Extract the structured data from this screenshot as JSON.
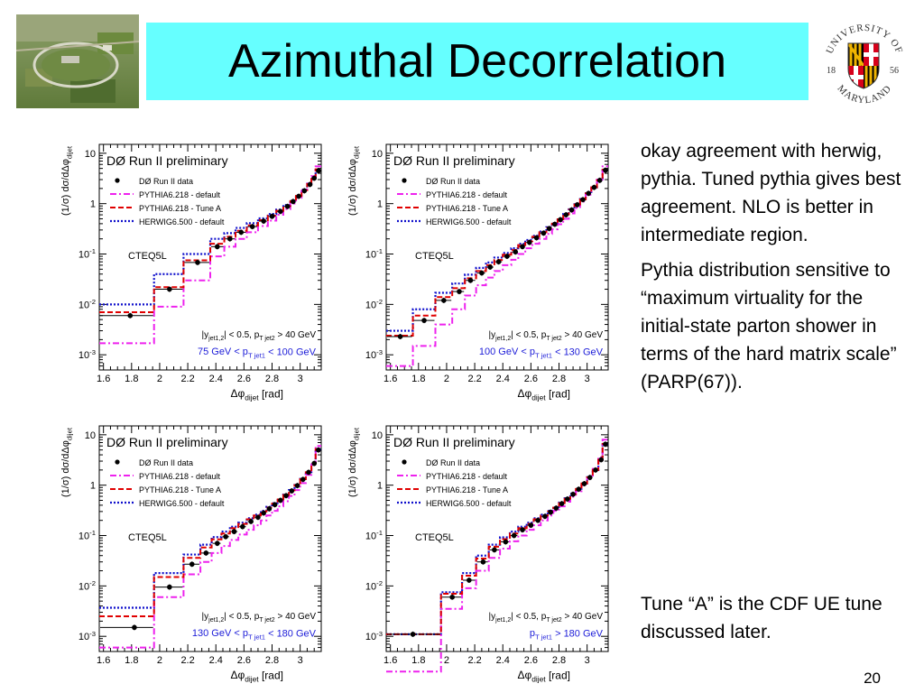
{
  "slide": {
    "title": "Azimuthal Decorrelation",
    "page_number": "20",
    "notes": [
      "okay agreement with herwig, pythia. Tuned pythia gives best agreement.  NLO is better in intermediate region.",
      "Pythia distribution sensitive to “maximum virtuality for the initial-state parton shower in terms of the hard matrix scale”  (PARP(67))."
    ],
    "footnote": "Tune “A” is the CDF UE tune discussed later.",
    "logo": {
      "name": "University of Maryland seal",
      "text_top": "UNIVERSITY OF",
      "text_bottom": "MARYLAND",
      "year_left": "18",
      "year_right": "56"
    },
    "photo": {
      "icon": "accelerator-aerial-photo"
    }
  },
  "colors": {
    "title_bg": "#66ffff",
    "data": "#000000",
    "pythia_default": "#ee22ee",
    "pythia_tuneA": "#e00000",
    "herwig": "#1010cc",
    "cut_text": "#1c1cd8"
  },
  "chart_data": [
    {
      "type": "line",
      "title": "DØ Run II preliminary",
      "xlabel": "Δφdijet [rad]",
      "ylabel": "(1/σ) dσ/dΔφdijet",
      "xlim": [
        1.57,
        3.15
      ],
      "ylim": [
        0.0005,
        15
      ],
      "ylog": true,
      "x_ticks": [
        "1.6",
        "1.8",
        "2",
        "2.2",
        "2.4",
        "2.6",
        "2.8",
        "3"
      ],
      "y_ticks": [
        "10",
        "1",
        "10-1",
        "10-2",
        "10-3"
      ],
      "pdf_label": "CTEQ5L",
      "cut_label": "|yjet1,2| < 0.5, pT jet2 > 40 GeV",
      "pt_label": "75 GeV < pT jet1 < 100 GeV",
      "legend": [
        "DØ  Run II data",
        "PYTHIA6.218 - default",
        "PYTHIA6.218 - Tune A",
        "HERWIG6.500 - default"
      ],
      "legend_position": "top-left",
      "bin_edges": [
        1.57,
        1.96,
        2.17,
        2.36,
        2.46,
        2.54,
        2.62,
        2.7,
        2.77,
        2.83,
        2.88,
        2.93,
        2.97,
        3.01,
        3.05,
        3.08,
        3.11,
        3.15
      ],
      "series": [
        {
          "name": "DØ  Run II data",
          "x": [
            1.79,
            2.07,
            2.27,
            2.41,
            2.5,
            2.58,
            2.66,
            2.74,
            2.8,
            2.86,
            2.91,
            2.95,
            2.99,
            3.03,
            3.07,
            3.1,
            3.13
          ],
          "values": [
            0.006,
            0.02,
            0.068,
            0.14,
            0.2,
            0.27,
            0.35,
            0.45,
            0.56,
            0.7,
            0.88,
            1.1,
            1.4,
            1.8,
            2.4,
            3.2,
            4.5
          ]
        },
        {
          "name": "PYTHIA6.218 - default",
          "values": [
            0.0017,
            0.009,
            0.03,
            0.09,
            0.14,
            0.2,
            0.27,
            0.36,
            0.46,
            0.6,
            0.78,
            1.0,
            1.3,
            1.8,
            2.5,
            3.5,
            5.5
          ]
        },
        {
          "name": "PYTHIA6.218 - Tune A",
          "values": [
            0.007,
            0.022,
            0.075,
            0.16,
            0.22,
            0.29,
            0.37,
            0.47,
            0.58,
            0.72,
            0.9,
            1.12,
            1.42,
            1.85,
            2.45,
            3.3,
            4.8
          ]
        },
        {
          "name": "HERWIG6.500 - default",
          "values": [
            0.01,
            0.04,
            0.1,
            0.2,
            0.26,
            0.33,
            0.41,
            0.51,
            0.62,
            0.76,
            0.94,
            1.16,
            1.46,
            1.9,
            2.5,
            3.3,
            4.7
          ]
        }
      ]
    },
    {
      "type": "line",
      "title": "DØ Run II preliminary",
      "xlabel": "Δφdijet [rad]",
      "ylabel": "(1/σ) dσ/dΔφdijet",
      "xlim": [
        1.57,
        3.15
      ],
      "ylim": [
        0.0005,
        15
      ],
      "ylog": true,
      "x_ticks": [
        "1.6",
        "1.8",
        "2",
        "2.2",
        "2.4",
        "2.6",
        "2.8",
        "3"
      ],
      "y_ticks": [
        "10",
        "1",
        "10-1",
        "10-2",
        "10-3"
      ],
      "pdf_label": "CTEQ5L",
      "cut_label": "|yjet1,2| < 0.5, pT jet2 > 40 GeV",
      "pt_label": "100 GeV < pT jet1 < 130 GeV",
      "legend": [
        "DØ  Run II data",
        "PYTHIA6.218 - default",
        "PYTHIA6.218 - Tune A",
        "HERWIG6.500 - default"
      ],
      "legend_position": "top-left",
      "bin_edges": [
        1.57,
        1.76,
        1.92,
        2.04,
        2.13,
        2.21,
        2.28,
        2.34,
        2.4,
        2.46,
        2.51,
        2.56,
        2.61,
        2.66,
        2.71,
        2.75,
        2.79,
        2.83,
        2.87,
        2.91,
        2.95,
        2.99,
        3.03,
        3.07,
        3.11,
        3.15
      ],
      "series": [
        {
          "name": "DØ  Run II data",
          "x": [
            1.67,
            1.84,
            1.98,
            2.09,
            2.17,
            2.25,
            2.31,
            2.37,
            2.43,
            2.49,
            2.54,
            2.59,
            2.64,
            2.69,
            2.73,
            2.77,
            2.81,
            2.85,
            2.89,
            2.93,
            2.97,
            3.01,
            3.05,
            3.09,
            3.13
          ],
          "values": [
            0.0023,
            0.0048,
            0.012,
            0.018,
            0.03,
            0.042,
            0.055,
            0.07,
            0.09,
            0.11,
            0.14,
            0.17,
            0.21,
            0.26,
            0.32,
            0.39,
            0.48,
            0.6,
            0.75,
            0.95,
            1.2,
            1.6,
            2.1,
            2.9,
            4.6
          ]
        },
        {
          "name": "PYTHIA6.218 - default",
          "values": [
            0.0006,
            0.0015,
            0.004,
            0.008,
            0.015,
            0.024,
            0.034,
            0.046,
            0.06,
            0.077,
            0.1,
            0.13,
            0.16,
            0.2,
            0.25,
            0.31,
            0.39,
            0.5,
            0.64,
            0.82,
            1.1,
            1.5,
            2.1,
            3.0,
            5.5
          ]
        },
        {
          "name": "PYTHIA6.218 - Tune A",
          "values": [
            0.0024,
            0.006,
            0.014,
            0.021,
            0.033,
            0.046,
            0.06,
            0.076,
            0.097,
            0.12,
            0.15,
            0.18,
            0.22,
            0.27,
            0.33,
            0.4,
            0.49,
            0.61,
            0.76,
            0.96,
            1.22,
            1.6,
            2.1,
            2.9,
            4.7
          ]
        },
        {
          "name": "HERWIG6.500 - default",
          "values": [
            0.003,
            0.008,
            0.017,
            0.026,
            0.039,
            0.053,
            0.068,
            0.085,
            0.105,
            0.13,
            0.16,
            0.19,
            0.23,
            0.28,
            0.34,
            0.41,
            0.5,
            0.62,
            0.77,
            0.97,
            1.23,
            1.6,
            2.1,
            2.9,
            4.6
          ]
        }
      ]
    },
    {
      "type": "line",
      "title": "DØ Run II preliminary",
      "xlabel": "Δφdijet [rad]",
      "ylabel": "(1/σ) dσ/dΔφdijet",
      "xlim": [
        1.57,
        3.15
      ],
      "ylim": [
        0.0005,
        15
      ],
      "ylog": true,
      "x_ticks": [
        "1.6",
        "1.8",
        "2",
        "2.2",
        "2.4",
        "2.6",
        "2.8",
        "3"
      ],
      "y_ticks": [
        "10",
        "1",
        "10-1",
        "10-2",
        "10-3"
      ],
      "pdf_label": "CTEQ5L",
      "cut_label": "|yjet1,2| < 0.5, pT jet2 > 40 GeV",
      "pt_label": "130 GeV < pT jet1 < 180 GeV",
      "legend": [
        "DØ  Run II data",
        "PYTHIA6.218 - default",
        "PYTHIA6.218 - Tune A",
        "HERWIG6.500 - default"
      ],
      "legend_position": "top-left",
      "bin_edges": [
        1.57,
        1.96,
        2.17,
        2.29,
        2.37,
        2.44,
        2.5,
        2.56,
        2.62,
        2.67,
        2.72,
        2.76,
        2.8,
        2.84,
        2.88,
        2.92,
        2.96,
        3.0,
        3.04,
        3.08,
        3.11,
        3.15
      ],
      "series": [
        {
          "name": "DØ  Run II data",
          "x": [
            1.82,
            2.07,
            2.23,
            2.33,
            2.41,
            2.47,
            2.53,
            2.59,
            2.65,
            2.7,
            2.74,
            2.78,
            2.82,
            2.86,
            2.9,
            2.94,
            2.98,
            3.02,
            3.06,
            3.1,
            3.13
          ],
          "values": [
            0.0015,
            0.0095,
            0.027,
            0.045,
            0.07,
            0.095,
            0.12,
            0.15,
            0.19,
            0.23,
            0.28,
            0.34,
            0.41,
            0.5,
            0.62,
            0.77,
            0.98,
            1.3,
            1.8,
            2.7,
            5.0
          ]
        },
        {
          "name": "PYTHIA6.218 - default",
          "values": [
            0.0006,
            0.006,
            0.017,
            0.03,
            0.045,
            0.062,
            0.082,
            0.105,
            0.13,
            0.16,
            0.2,
            0.25,
            0.31,
            0.38,
            0.48,
            0.61,
            0.8,
            1.1,
            1.6,
            2.6,
            6.0
          ]
        },
        {
          "name": "PYTHIA6.218 - Tune A",
          "values": [
            0.0025,
            0.015,
            0.036,
            0.058,
            0.084,
            0.11,
            0.14,
            0.17,
            0.21,
            0.25,
            0.3,
            0.36,
            0.43,
            0.52,
            0.64,
            0.79,
            1.0,
            1.32,
            1.8,
            2.7,
            5.2
          ]
        },
        {
          "name": "HERWIG6.500 - default",
          "values": [
            0.0037,
            0.018,
            0.042,
            0.066,
            0.093,
            0.12,
            0.15,
            0.18,
            0.22,
            0.26,
            0.31,
            0.37,
            0.44,
            0.53,
            0.65,
            0.8,
            1.01,
            1.33,
            1.82,
            2.7,
            5.1
          ]
        }
      ]
    },
    {
      "type": "line",
      "title": "DØ Run II preliminary",
      "xlabel": "Δφdijet [rad]",
      "ylabel": "(1/σ) dσ/dΔφdijet",
      "xlim": [
        1.57,
        3.15
      ],
      "ylim": [
        0.0005,
        15
      ],
      "ylog": true,
      "x_ticks": [
        "1.6",
        "1.8",
        "2",
        "2.2",
        "2.4",
        "2.6",
        "2.8",
        "3"
      ],
      "y_ticks": [
        "10",
        "1",
        "10-1",
        "10-2",
        "10-3"
      ],
      "pdf_label": "CTEQ5L",
      "cut_label": "|yjet1,2| < 0.5, pT jet2 > 40 GeV",
      "pt_label": "pT jet1 > 180 GeV",
      "legend": [
        "DØ  Run II data",
        "PYTHIA6.218 - default",
        "PYTHIA6.218 - Tune A",
        "HERWIG6.500 - default"
      ],
      "legend_position": "top-left",
      "bin_edges": [
        1.57,
        1.96,
        2.11,
        2.21,
        2.3,
        2.38,
        2.45,
        2.51,
        2.57,
        2.62,
        2.67,
        2.72,
        2.76,
        2.8,
        2.84,
        2.88,
        2.92,
        2.96,
        3.0,
        3.04,
        3.08,
        3.11,
        3.15
      ],
      "series": [
        {
          "name": "DØ  Run II data",
          "x": [
            1.76,
            2.04,
            2.16,
            2.26,
            2.34,
            2.42,
            2.48,
            2.54,
            2.6,
            2.65,
            2.7,
            2.74,
            2.78,
            2.82,
            2.86,
            2.9,
            2.94,
            2.98,
            3.02,
            3.06,
            3.1,
            3.13
          ],
          "values": [
            0.0011,
            0.006,
            0.013,
            0.03,
            0.052,
            0.075,
            0.1,
            0.13,
            0.16,
            0.2,
            0.24,
            0.29,
            0.35,
            0.43,
            0.53,
            0.66,
            0.83,
            1.07,
            1.42,
            2.0,
            3.2,
            6.5
          ]
        },
        {
          "name": "PYTHIA6.218 - default",
          "values": [
            0.0002,
            0.0035,
            0.009,
            0.02,
            0.036,
            0.055,
            0.077,
            0.1,
            0.13,
            0.16,
            0.2,
            0.25,
            0.31,
            0.38,
            0.47,
            0.59,
            0.76,
            1.0,
            1.4,
            2.1,
            3.6,
            8.0
          ]
        },
        {
          "name": "PYTHIA6.218 - Tune A",
          "values": [
            0.0011,
            0.007,
            0.016,
            0.035,
            0.06,
            0.085,
            0.11,
            0.14,
            0.17,
            0.21,
            0.25,
            0.3,
            0.36,
            0.44,
            0.54,
            0.67,
            0.84,
            1.08,
            1.43,
            2.0,
            3.2,
            6.6
          ]
        },
        {
          "name": "HERWIG6.500 - default",
          "values": [
            0.0011,
            0.0075,
            0.018,
            0.04,
            0.066,
            0.092,
            0.12,
            0.15,
            0.18,
            0.22,
            0.26,
            0.31,
            0.37,
            0.45,
            0.55,
            0.68,
            0.85,
            1.09,
            1.44,
            2.0,
            3.2,
            6.4
          ]
        }
      ]
    }
  ]
}
